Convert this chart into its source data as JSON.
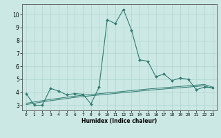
{
  "x": [
    0,
    1,
    2,
    3,
    4,
    5,
    6,
    7,
    8,
    9,
    10,
    11,
    12,
    13,
    14,
    15,
    16,
    17,
    18,
    19,
    20,
    21,
    22,
    23
  ],
  "y_main": [
    3.9,
    3.0,
    3.0,
    4.3,
    4.1,
    3.8,
    3.9,
    3.85,
    3.1,
    4.4,
    9.6,
    9.3,
    10.4,
    8.8,
    6.5,
    6.4,
    5.2,
    5.4,
    4.9,
    5.1,
    5.0,
    4.2,
    4.4,
    4.35
  ],
  "y_trend1": [
    3.05,
    3.15,
    3.25,
    3.35,
    3.43,
    3.52,
    3.6,
    3.67,
    3.73,
    3.79,
    3.85,
    3.91,
    3.97,
    4.03,
    4.09,
    4.15,
    4.2,
    4.25,
    4.3,
    4.35,
    4.4,
    4.45,
    4.5,
    4.3
  ],
  "y_trend2": [
    3.15,
    3.25,
    3.35,
    3.45,
    3.53,
    3.62,
    3.7,
    3.77,
    3.83,
    3.89,
    3.95,
    4.01,
    4.07,
    4.13,
    4.19,
    4.25,
    4.3,
    4.35,
    4.4,
    4.45,
    4.5,
    4.55,
    4.6,
    4.4
  ],
  "line_color": "#2d7a6e",
  "bg_color": "#cce8e4",
  "grid_color": "#aed4cf",
  "xlabel": "Humidex (Indice chaleur)",
  "xlim": [
    -0.5,
    23.5
  ],
  "ylim": [
    2.6,
    10.8
  ],
  "yticks": [
    3,
    4,
    5,
    6,
    7,
    8,
    9,
    10
  ],
  "xticks": [
    0,
    1,
    2,
    3,
    4,
    5,
    6,
    7,
    8,
    9,
    10,
    11,
    12,
    13,
    14,
    15,
    16,
    17,
    18,
    19,
    20,
    21,
    22,
    23
  ]
}
